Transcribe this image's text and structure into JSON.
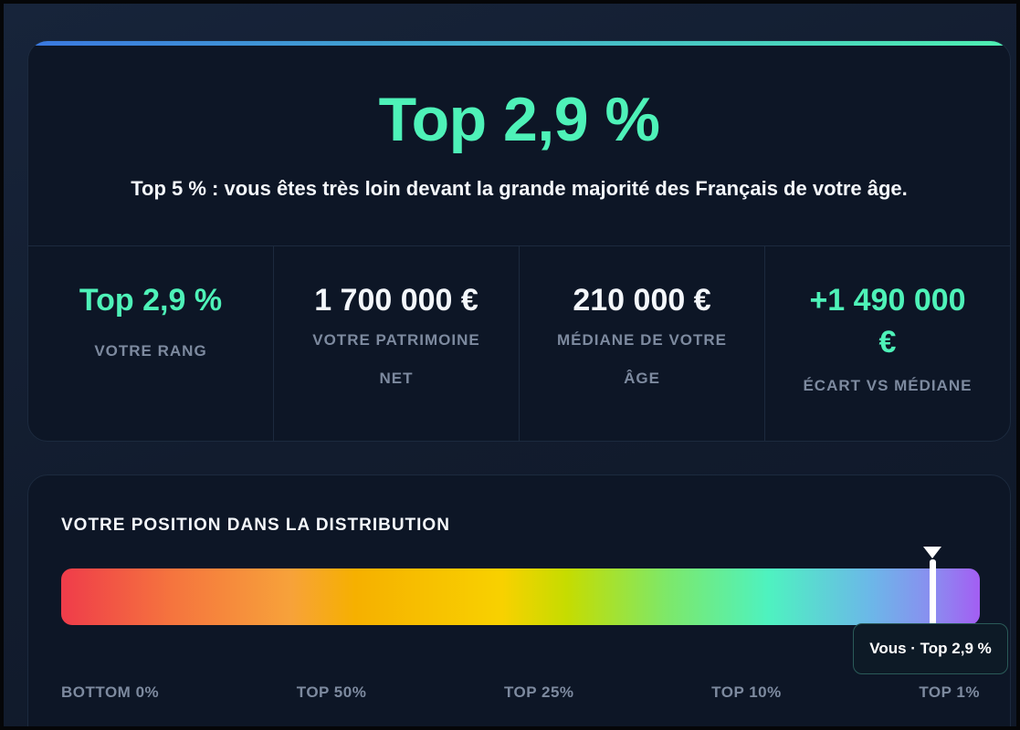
{
  "summary": {
    "rank_title": "Top 2,9 %",
    "subtitle": "Top 5 % : vous êtes très loin devant la grande majorité des Français de votre âge.",
    "accent_colors": [
      "#3a78e0",
      "#4ef0b2"
    ]
  },
  "stats": [
    {
      "value": "Top 2,9 %",
      "label": "VOTRE RANG",
      "color": "#4ef2b8"
    },
    {
      "value": "1 700 000 €",
      "label": "VOTRE PATRIMOINE NET",
      "color": "#f4f7fb"
    },
    {
      "value": "210 000 €",
      "label": "MÉDIANE DE VOTRE ÂGE",
      "color": "#f4f7fb"
    },
    {
      "value": "+1 490 000 €",
      "label": "ÉCART VS MÉDIANE",
      "color": "#4ef2b8"
    }
  ],
  "distribution": {
    "title": "VOTRE POSITION DANS LA DISTRIBUTION",
    "marker_tooltip": "Vous · Top 2,9 %",
    "marker_level_percent": 97.1,
    "scale_labels": [
      "BOTTOM 0%",
      "TOP 50%",
      "TOP 25%",
      "TOP 10%",
      "TOP 1%"
    ],
    "gradient_colors": [
      "#ef3c4a",
      "#f7a23a",
      "#f8d100",
      "#7de86a",
      "#4ef2c0",
      "#a35ef2"
    ]
  }
}
